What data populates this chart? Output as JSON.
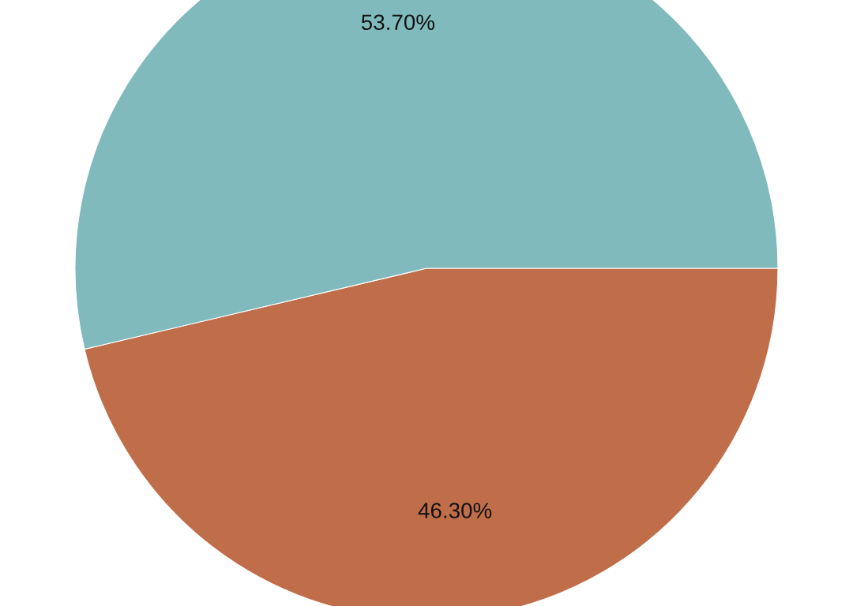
{
  "chart_data": {
    "type": "pie",
    "categories": [
      null,
      null
    ],
    "values": [
      46.3,
      53.7
    ],
    "value_labels": [
      "46.30%",
      "53.70%"
    ],
    "colors": [
      "#c06e4a",
      "#80babd"
    ]
  }
}
